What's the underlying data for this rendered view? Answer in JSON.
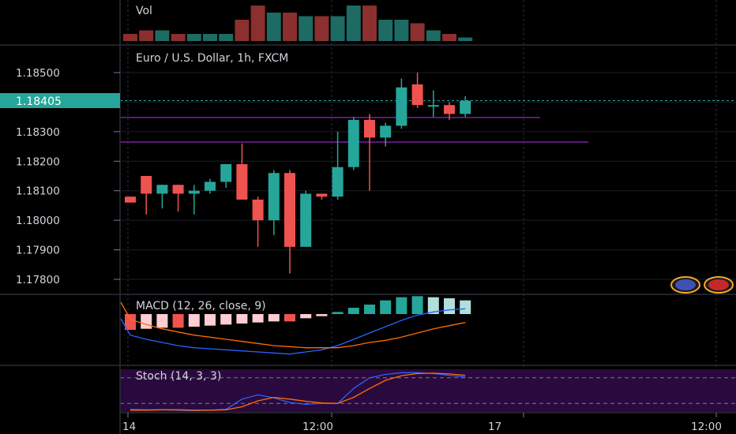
{
  "panes": {
    "vol_label": "Vol",
    "main_title": "Euro / U.S. Dollar, 1h, FXCM",
    "macd_label": "MACD (12, 26, close, 9)",
    "stoch_label": "Stoch (14, 3, 3)"
  },
  "x_axis": {
    "ticks": [
      "14",
      "12:00",
      "17",
      "12:00"
    ]
  },
  "price_axis": {
    "ticks": [
      "1.18500",
      "1.18400",
      "1.18300",
      "1.18200",
      "1.18100",
      "1.18000",
      "1.17900",
      "1.17800"
    ],
    "current_label": "1.18405",
    "current_price": 1.18405
  },
  "horizontal_lines": [
    {
      "price": 1.18348,
      "color": "#7b1fa2"
    },
    {
      "price": 1.18265,
      "color": "#7b1fa2"
    }
  ],
  "flags": [
    {
      "name": "eu-flag-icon",
      "color": "#3f51b5"
    },
    {
      "name": "us-flag-icon",
      "color": "#c62828"
    }
  ],
  "colors": {
    "up": "#26a69a",
    "down": "#ef5350",
    "up_vol": "#1e6b63",
    "down_vol": "#8b2f2f",
    "macd": "#2962ff",
    "signal": "#ff6d00",
    "stoch_band": "#2a0a3e"
  },
  "chart_data": {
    "type": "candlestick",
    "title": "Euro / U.S. Dollar, 1h, FXCM",
    "ylim": [
      1.1775,
      1.1855
    ],
    "candles": [
      {
        "o": 1.1808,
        "h": 1.1808,
        "l": 1.1806,
        "c": 1.1806,
        "v": 2
      },
      {
        "o": 1.1815,
        "h": 1.1815,
        "l": 1.1802,
        "c": 1.1809,
        "v": 3
      },
      {
        "o": 1.1809,
        "h": 1.1812,
        "l": 1.1804,
        "c": 1.1812,
        "v": 3
      },
      {
        "o": 1.1812,
        "h": 1.1812,
        "l": 1.1803,
        "c": 1.1809,
        "v": 2
      },
      {
        "o": 1.1809,
        "h": 1.1812,
        "l": 1.1802,
        "c": 1.181,
        "v": 2
      },
      {
        "o": 1.181,
        "h": 1.1814,
        "l": 1.1809,
        "c": 1.1813,
        "v": 2
      },
      {
        "o": 1.1813,
        "h": 1.1819,
        "l": 1.1811,
        "c": 1.1819,
        "v": 2
      },
      {
        "o": 1.1819,
        "h": 1.1826,
        "l": 1.1807,
        "c": 1.1807,
        "v": 6
      },
      {
        "o": 1.1807,
        "h": 1.1808,
        "l": 1.1791,
        "c": 1.18,
        "v": 10
      },
      {
        "o": 1.18,
        "h": 1.1817,
        "l": 1.1795,
        "c": 1.1816,
        "v": 8
      },
      {
        "o": 1.1816,
        "h": 1.1817,
        "l": 1.1782,
        "c": 1.1791,
        "v": 8
      },
      {
        "o": 1.1791,
        "h": 1.181,
        "l": 1.1791,
        "c": 1.1809,
        "v": 7
      },
      {
        "o": 1.1809,
        "h": 1.1809,
        "l": 1.1807,
        "c": 1.1808,
        "v": 7
      },
      {
        "o": 1.1808,
        "h": 1.183,
        "l": 1.1807,
        "c": 1.1818,
        "v": 7
      },
      {
        "o": 1.1818,
        "h": 1.1835,
        "l": 1.1817,
        "c": 1.1834,
        "v": 10
      },
      {
        "o": 1.1834,
        "h": 1.1836,
        "l": 1.181,
        "c": 1.1828,
        "v": 10
      },
      {
        "o": 1.1828,
        "h": 1.1833,
        "l": 1.1825,
        "c": 1.1832,
        "v": 6
      },
      {
        "o": 1.1832,
        "h": 1.1848,
        "l": 1.1831,
        "c": 1.1845,
        "v": 6
      },
      {
        "o": 1.1846,
        "h": 1.185,
        "l": 1.1838,
        "c": 1.1839,
        "v": 5
      },
      {
        "o": 1.1839,
        "h": 1.1844,
        "l": 1.1835,
        "c": 1.1839,
        "v": 3
      },
      {
        "o": 1.1839,
        "h": 1.184,
        "l": 1.1834,
        "c": 1.1836,
        "v": 2
      },
      {
        "o": 1.1836,
        "h": 1.1842,
        "l": 1.1835,
        "c": 1.18405,
        "v": 1
      }
    ],
    "macd": {
      "macd": [
        -0.0002,
        -0.00024,
        -0.00027,
        -0.0003,
        -0.00032,
        -0.00033,
        -0.00034,
        -0.00035,
        -0.00036,
        -0.00037,
        -0.00038,
        -0.00036,
        -0.00034,
        -0.0003,
        -0.00024,
        -0.00018,
        -0.00012,
        -6e-05,
        -1e-05,
        2e-05,
        4e-05,
        5e-05
      ],
      "signal": [
        -5e-05,
        -0.0001,
        -0.00014,
        -0.00017,
        -0.0002,
        -0.00022,
        -0.00024,
        -0.00026,
        -0.00028,
        -0.0003,
        -0.00031,
        -0.00032,
        -0.00032,
        -0.00032,
        -0.0003,
        -0.00027,
        -0.00025,
        -0.00022,
        -0.00018,
        -0.00014,
        -0.00011,
        -8e-05
      ],
      "histogram": [
        -0.00015,
        -0.00014,
        -0.00013,
        -0.00013,
        -0.00012,
        -0.00011,
        -0.0001,
        -9e-05,
        -8e-05,
        -7e-05,
        -7e-05,
        -4e-05,
        -2e-05,
        2e-05,
        6e-05,
        9e-05,
        0.00013,
        0.00016,
        0.00017,
        0.00016,
        0.00015,
        0.00013
      ],
      "ylim": [
        -0.00045,
        0.00012
      ]
    },
    "stoch": {
      "k": [
        6,
        5,
        5,
        4,
        3,
        4,
        6,
        30,
        40,
        33,
        22,
        18,
        20,
        20,
        55,
        80,
        88,
        92,
        92,
        90,
        86,
        82
      ],
      "d": [
        4,
        4,
        5,
        5,
        4,
        4,
        5,
        12,
        26,
        34,
        30,
        25,
        21,
        20,
        34,
        55,
        74,
        85,
        90,
        91,
        89,
        86
      ],
      "ylim": [
        0,
        100
      ],
      "band": [
        20,
        80
      ]
    }
  }
}
